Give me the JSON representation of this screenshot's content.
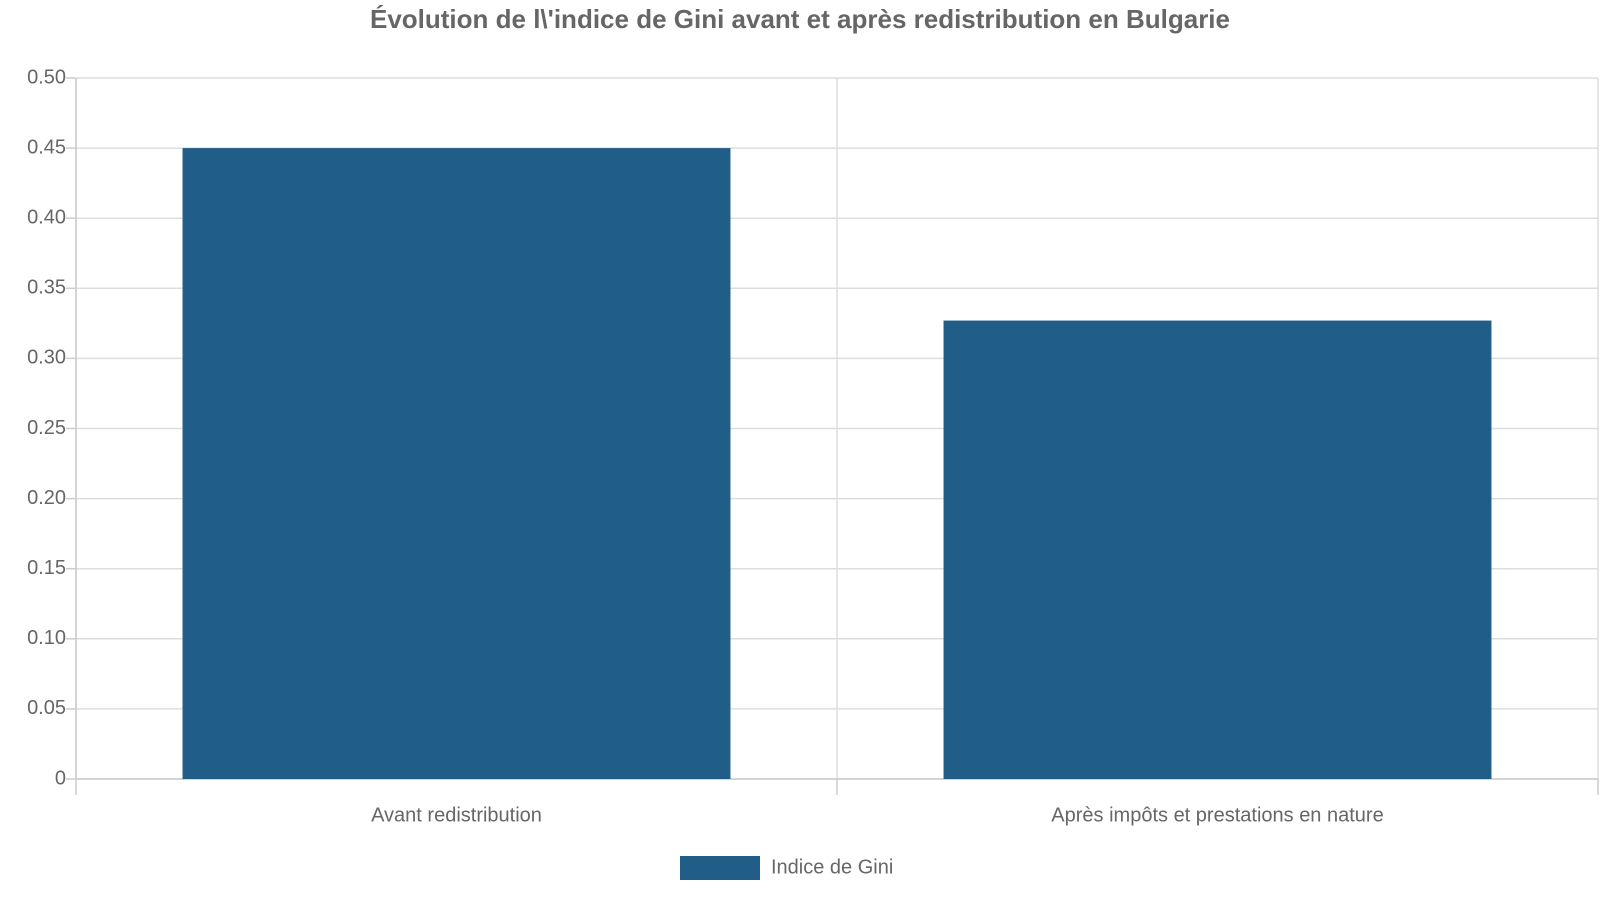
{
  "chart_data": {
    "type": "bar",
    "title": "Évolution de l\\'indice de Gini avant et après redistribution en Bulgarie",
    "categories": [
      "Avant redistribution",
      "Après impôts et prestations en nature"
    ],
    "series": [
      {
        "name": "Indice de Gini",
        "color": "#215e87",
        "values": [
          0.45,
          0.327
        ]
      }
    ],
    "ylim": [
      0,
      0.5
    ],
    "yticks": [
      0,
      0.05,
      {
        "value": 0.1,
        "label": "0.10"
      },
      0.15,
      {
        "value": 0.2,
        "label": "0.20"
      },
      0.25,
      {
        "value": 0.3,
        "label": "0.30"
      },
      0.35,
      {
        "value": 0.4,
        "label": "0.40"
      },
      0.45,
      {
        "value": 0.5,
        "label": "0.50"
      }
    ],
    "grid": true,
    "legend": "bottom"
  }
}
